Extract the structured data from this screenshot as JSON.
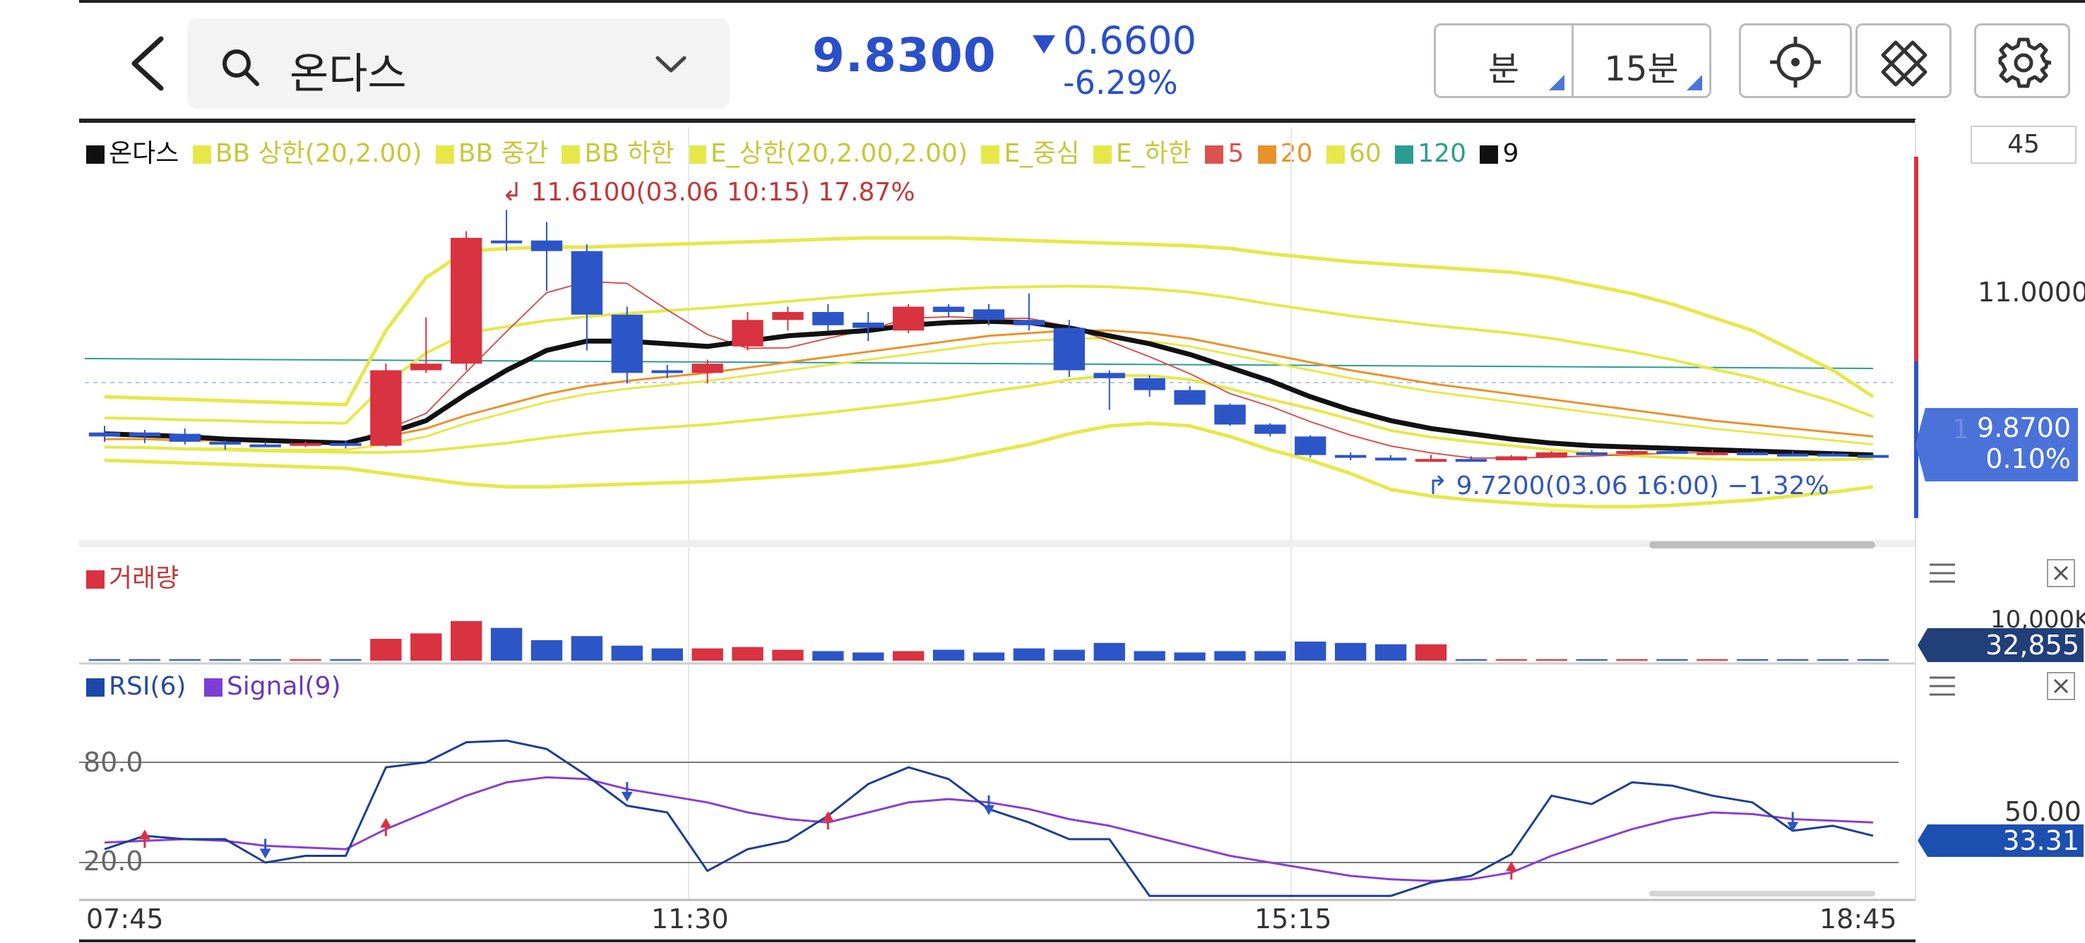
{
  "header": {
    "stock_name": "온다스",
    "price": "9.8300",
    "change": "0.6600",
    "change_pct": "-6.29%",
    "interval_unit": "분",
    "interval_value": "15분",
    "down_color": "#2a4fc8"
  },
  "legend": {
    "items": [
      {
        "label": "온다스",
        "color": "#111111"
      },
      {
        "label": "BB 상한(20,2.00)",
        "color": "#e6e84a"
      },
      {
        "label": "BB 중간",
        "color": "#e6e84a"
      },
      {
        "label": "BB 하한",
        "color": "#e6e84a"
      },
      {
        "label": "E_상한(20,2.00,2.00)",
        "color": "#e6e84a"
      },
      {
        "label": "E_중심",
        "color": "#e6e84a"
      },
      {
        "label": "E_하한",
        "color": "#e6e84a"
      },
      {
        "label": "5",
        "color": "#d9534f"
      },
      {
        "label": "20",
        "color": "#e8932a"
      },
      {
        "label": "60",
        "color": "#e6e84a"
      },
      {
        "label": "120",
        "color": "#2a9d8f"
      },
      {
        "label": "9",
        "color": "#111111"
      }
    ]
  },
  "annotations": {
    "high": "11.6100(03.06 10:15) 17.87%",
    "low": "9.7200(03.06 16:00) −1.32%"
  },
  "price_axis": {
    "top_value": "45",
    "mid_value": "11.0000",
    "current_price": "9.8700",
    "current_pct": "0.10%",
    "current_price_overlay": "1"
  },
  "volume_pane": {
    "title": "거래량",
    "axis_value": "10,000K",
    "current_value": "32,855"
  },
  "rsi_pane": {
    "rsi_label": "RSI(6)",
    "signal_label": "Signal(9)",
    "level_80": "80.0",
    "level_20": "20.0",
    "axis_value": "50.00",
    "current_value": "33.31"
  },
  "time_axis": {
    "labels": [
      "07:45",
      "11:30",
      "15:15",
      "18:45"
    ]
  },
  "chart_data": {
    "type": "candlestick",
    "interval": "15분",
    "candles": [
      {
        "o": 9.9,
        "h": 9.98,
        "l": 9.86,
        "c": 9.93,
        "dir": "down"
      },
      {
        "o": 9.93,
        "h": 9.95,
        "l": 9.85,
        "c": 9.9,
        "dir": "down"
      },
      {
        "o": 9.92,
        "h": 9.96,
        "l": 9.84,
        "c": 9.86,
        "dir": "down"
      },
      {
        "o": 9.86,
        "h": 9.87,
        "l": 9.8,
        "c": 9.84,
        "dir": "down"
      },
      {
        "o": 9.84,
        "h": 9.86,
        "l": 9.82,
        "c": 9.84,
        "dir": "down"
      },
      {
        "o": 9.84,
        "h": 9.86,
        "l": 9.82,
        "c": 9.85,
        "dir": "up"
      },
      {
        "o": 9.85,
        "h": 9.87,
        "l": 9.81,
        "c": 9.83,
        "dir": "down"
      },
      {
        "o": 9.83,
        "h": 10.45,
        "l": 9.82,
        "c": 10.4,
        "dir": "up"
      },
      {
        "o": 10.4,
        "h": 10.8,
        "l": 10.38,
        "c": 10.45,
        "dir": "up"
      },
      {
        "o": 10.45,
        "h": 11.45,
        "l": 10.4,
        "c": 11.4,
        "dir": "up"
      },
      {
        "o": 11.38,
        "h": 11.61,
        "l": 11.3,
        "c": 11.38,
        "dir": "down"
      },
      {
        "o": 11.38,
        "h": 11.52,
        "l": 11.0,
        "c": 11.3,
        "dir": "down"
      },
      {
        "o": 11.3,
        "h": 11.35,
        "l": 10.55,
        "c": 10.82,
        "dir": "down"
      },
      {
        "o": 10.82,
        "h": 10.88,
        "l": 10.3,
        "c": 10.38,
        "dir": "down"
      },
      {
        "o": 10.38,
        "h": 10.44,
        "l": 10.34,
        "c": 10.4,
        "dir": "down"
      },
      {
        "o": 10.38,
        "h": 10.48,
        "l": 10.3,
        "c": 10.45,
        "dir": "up"
      },
      {
        "o": 10.58,
        "h": 10.84,
        "l": 10.55,
        "c": 10.78,
        "dir": "up"
      },
      {
        "o": 10.78,
        "h": 10.88,
        "l": 10.7,
        "c": 10.84,
        "dir": "up"
      },
      {
        "o": 10.84,
        "h": 10.9,
        "l": 10.7,
        "c": 10.74,
        "dir": "down"
      },
      {
        "o": 10.76,
        "h": 10.84,
        "l": 10.62,
        "c": 10.72,
        "dir": "down"
      },
      {
        "o": 10.7,
        "h": 10.9,
        "l": 10.68,
        "c": 10.88,
        "dir": "up"
      },
      {
        "o": 10.88,
        "h": 10.9,
        "l": 10.8,
        "c": 10.84,
        "dir": "down"
      },
      {
        "o": 10.86,
        "h": 10.9,
        "l": 10.74,
        "c": 10.78,
        "dir": "down"
      },
      {
        "o": 10.78,
        "h": 10.98,
        "l": 10.7,
        "c": 10.74,
        "dir": "down"
      },
      {
        "o": 10.72,
        "h": 10.78,
        "l": 10.35,
        "c": 10.4,
        "dir": "down"
      },
      {
        "o": 10.38,
        "h": 10.4,
        "l": 10.1,
        "c": 10.34,
        "dir": "down"
      },
      {
        "o": 10.34,
        "h": 10.36,
        "l": 10.2,
        "c": 10.25,
        "dir": "down"
      },
      {
        "o": 10.25,
        "h": 10.28,
        "l": 10.14,
        "c": 10.14,
        "dir": "down"
      },
      {
        "o": 10.14,
        "h": 10.15,
        "l": 9.98,
        "c": 9.99,
        "dir": "down"
      },
      {
        "o": 9.99,
        "h": 10.0,
        "l": 9.9,
        "c": 9.92,
        "dir": "down"
      },
      {
        "o": 9.9,
        "h": 9.91,
        "l": 9.74,
        "c": 9.76,
        "dir": "down"
      },
      {
        "o": 9.76,
        "h": 9.78,
        "l": 9.72,
        "c": 9.74,
        "dir": "down"
      },
      {
        "o": 9.74,
        "h": 9.76,
        "l": 9.72,
        "c": 9.73,
        "dir": "down"
      },
      {
        "o": 9.72,
        "h": 9.76,
        "l": 9.72,
        "c": 9.73,
        "dir": "up"
      },
      {
        "o": 9.72,
        "h": 9.75,
        "l": 9.72,
        "c": 9.73,
        "dir": "down"
      },
      {
        "o": 9.72,
        "h": 9.76,
        "l": 9.72,
        "c": 9.75,
        "dir": "up"
      },
      {
        "o": 9.74,
        "h": 9.79,
        "l": 9.74,
        "c": 9.78,
        "dir": "up"
      },
      {
        "o": 9.78,
        "h": 9.8,
        "l": 9.76,
        "c": 9.77,
        "dir": "down"
      },
      {
        "o": 9.78,
        "h": 9.8,
        "l": 9.76,
        "c": 9.79,
        "dir": "up"
      },
      {
        "o": 9.79,
        "h": 9.8,
        "l": 9.77,
        "c": 9.78,
        "dir": "down"
      },
      {
        "o": 9.78,
        "h": 9.8,
        "l": 9.76,
        "c": 9.78,
        "dir": "up"
      },
      {
        "o": 9.78,
        "h": 9.79,
        "l": 9.76,
        "c": 9.77,
        "dir": "down"
      },
      {
        "o": 9.77,
        "h": 9.79,
        "l": 9.76,
        "c": 9.77,
        "dir": "down"
      },
      {
        "o": 9.77,
        "h": 9.78,
        "l": 9.76,
        "c": 9.76,
        "dir": "down"
      },
      {
        "o": 9.76,
        "h": 9.77,
        "l": 9.75,
        "c": 9.76,
        "dir": "down"
      }
    ],
    "ma9": [
      9.92,
      9.91,
      9.9,
      9.88,
      9.87,
      9.86,
      9.85,
      9.92,
      10.02,
      10.22,
      10.4,
      10.55,
      10.62,
      10.62,
      10.6,
      10.58,
      10.62,
      10.66,
      10.68,
      10.7,
      10.74,
      10.76,
      10.77,
      10.76,
      10.72,
      10.66,
      10.6,
      10.52,
      10.42,
      10.32,
      10.2,
      10.1,
      10.02,
      9.96,
      9.92,
      9.88,
      9.85,
      9.83,
      9.82,
      9.81,
      9.8,
      9.79,
      9.78,
      9.77,
      9.76
    ],
    "bb_upper": [
      10.2,
      10.19,
      10.18,
      10.17,
      10.16,
      10.15,
      10.14,
      10.7,
      11.1,
      11.3,
      11.32,
      11.33,
      11.33,
      11.34,
      11.35,
      11.36,
      11.37,
      11.38,
      11.39,
      11.4,
      11.4,
      11.4,
      11.39,
      11.38,
      11.37,
      11.36,
      11.35,
      11.34,
      11.32,
      11.28,
      11.25,
      11.22,
      11.2,
      11.18,
      11.16,
      11.14,
      11.1,
      11.04,
      10.98,
      10.9,
      10.8,
      10.7,
      10.55,
      10.4,
      10.2
    ],
    "bb_lower": [
      9.72,
      9.71,
      9.7,
      9.69,
      9.68,
      9.67,
      9.66,
      9.62,
      9.58,
      9.54,
      9.52,
      9.52,
      9.53,
      9.54,
      9.55,
      9.56,
      9.58,
      9.6,
      9.62,
      9.65,
      9.68,
      9.72,
      9.78,
      9.84,
      9.92,
      9.98,
      10.0,
      9.98,
      9.9,
      9.8,
      9.72,
      9.62,
      9.5,
      9.45,
      9.42,
      9.4,
      9.38,
      9.37,
      9.37,
      9.38,
      9.4,
      9.42,
      9.45,
      9.48,
      9.52
    ],
    "ma20": [
      9.88,
      9.88,
      9.87,
      9.87,
      9.86,
      9.86,
      9.86,
      9.9,
      9.96,
      10.06,
      10.14,
      10.22,
      10.28,
      10.32,
      10.35,
      10.38,
      10.42,
      10.46,
      10.5,
      10.54,
      10.58,
      10.62,
      10.66,
      10.68,
      10.7,
      10.7,
      10.68,
      10.64,
      10.58,
      10.52,
      10.46,
      10.4,
      10.35,
      10.3,
      10.26,
      10.22,
      10.18,
      10.14,
      10.1,
      10.06,
      10.02,
      9.99,
      9.96,
      9.93,
      9.9
    ],
    "volume": [
      0.3,
      0.3,
      0.3,
      0.3,
      0.2,
      0.3,
      0.3,
      16,
      20,
      29,
      24,
      15,
      18,
      11,
      9,
      9,
      10,
      8,
      7,
      6,
      7,
      8,
      6,
      9,
      8,
      13,
      7,
      6,
      7,
      7,
      14,
      13,
      12,
      12,
      0.3,
      0.3,
      0.3,
      0.3,
      0.3,
      0.3,
      0.3,
      0.3,
      0.3,
      0.3,
      0.3
    ],
    "rsi": [
      28,
      36,
      34,
      34,
      20,
      24,
      24,
      77,
      80,
      92,
      93,
      88,
      72,
      54,
      50,
      15,
      28,
      33,
      48,
      67,
      77,
      70,
      52,
      44,
      34,
      34,
      0,
      0,
      0,
      0,
      0,
      0,
      0,
      8,
      12,
      25,
      60,
      55,
      68,
      66,
      60,
      56,
      39,
      42,
      36
    ],
    "signal": [
      32,
      33,
      34,
      33,
      30,
      29,
      28,
      40,
      50,
      60,
      68,
      71,
      70,
      64,
      60,
      56,
      50,
      46,
      44,
      50,
      56,
      58,
      56,
      52,
      46,
      42,
      36,
      30,
      24,
      20,
      16,
      12,
      10,
      9,
      10,
      14,
      24,
      32,
      40,
      46,
      50,
      49,
      46,
      45,
      44
    ],
    "rsi_levels": [
      80,
      20
    ]
  }
}
